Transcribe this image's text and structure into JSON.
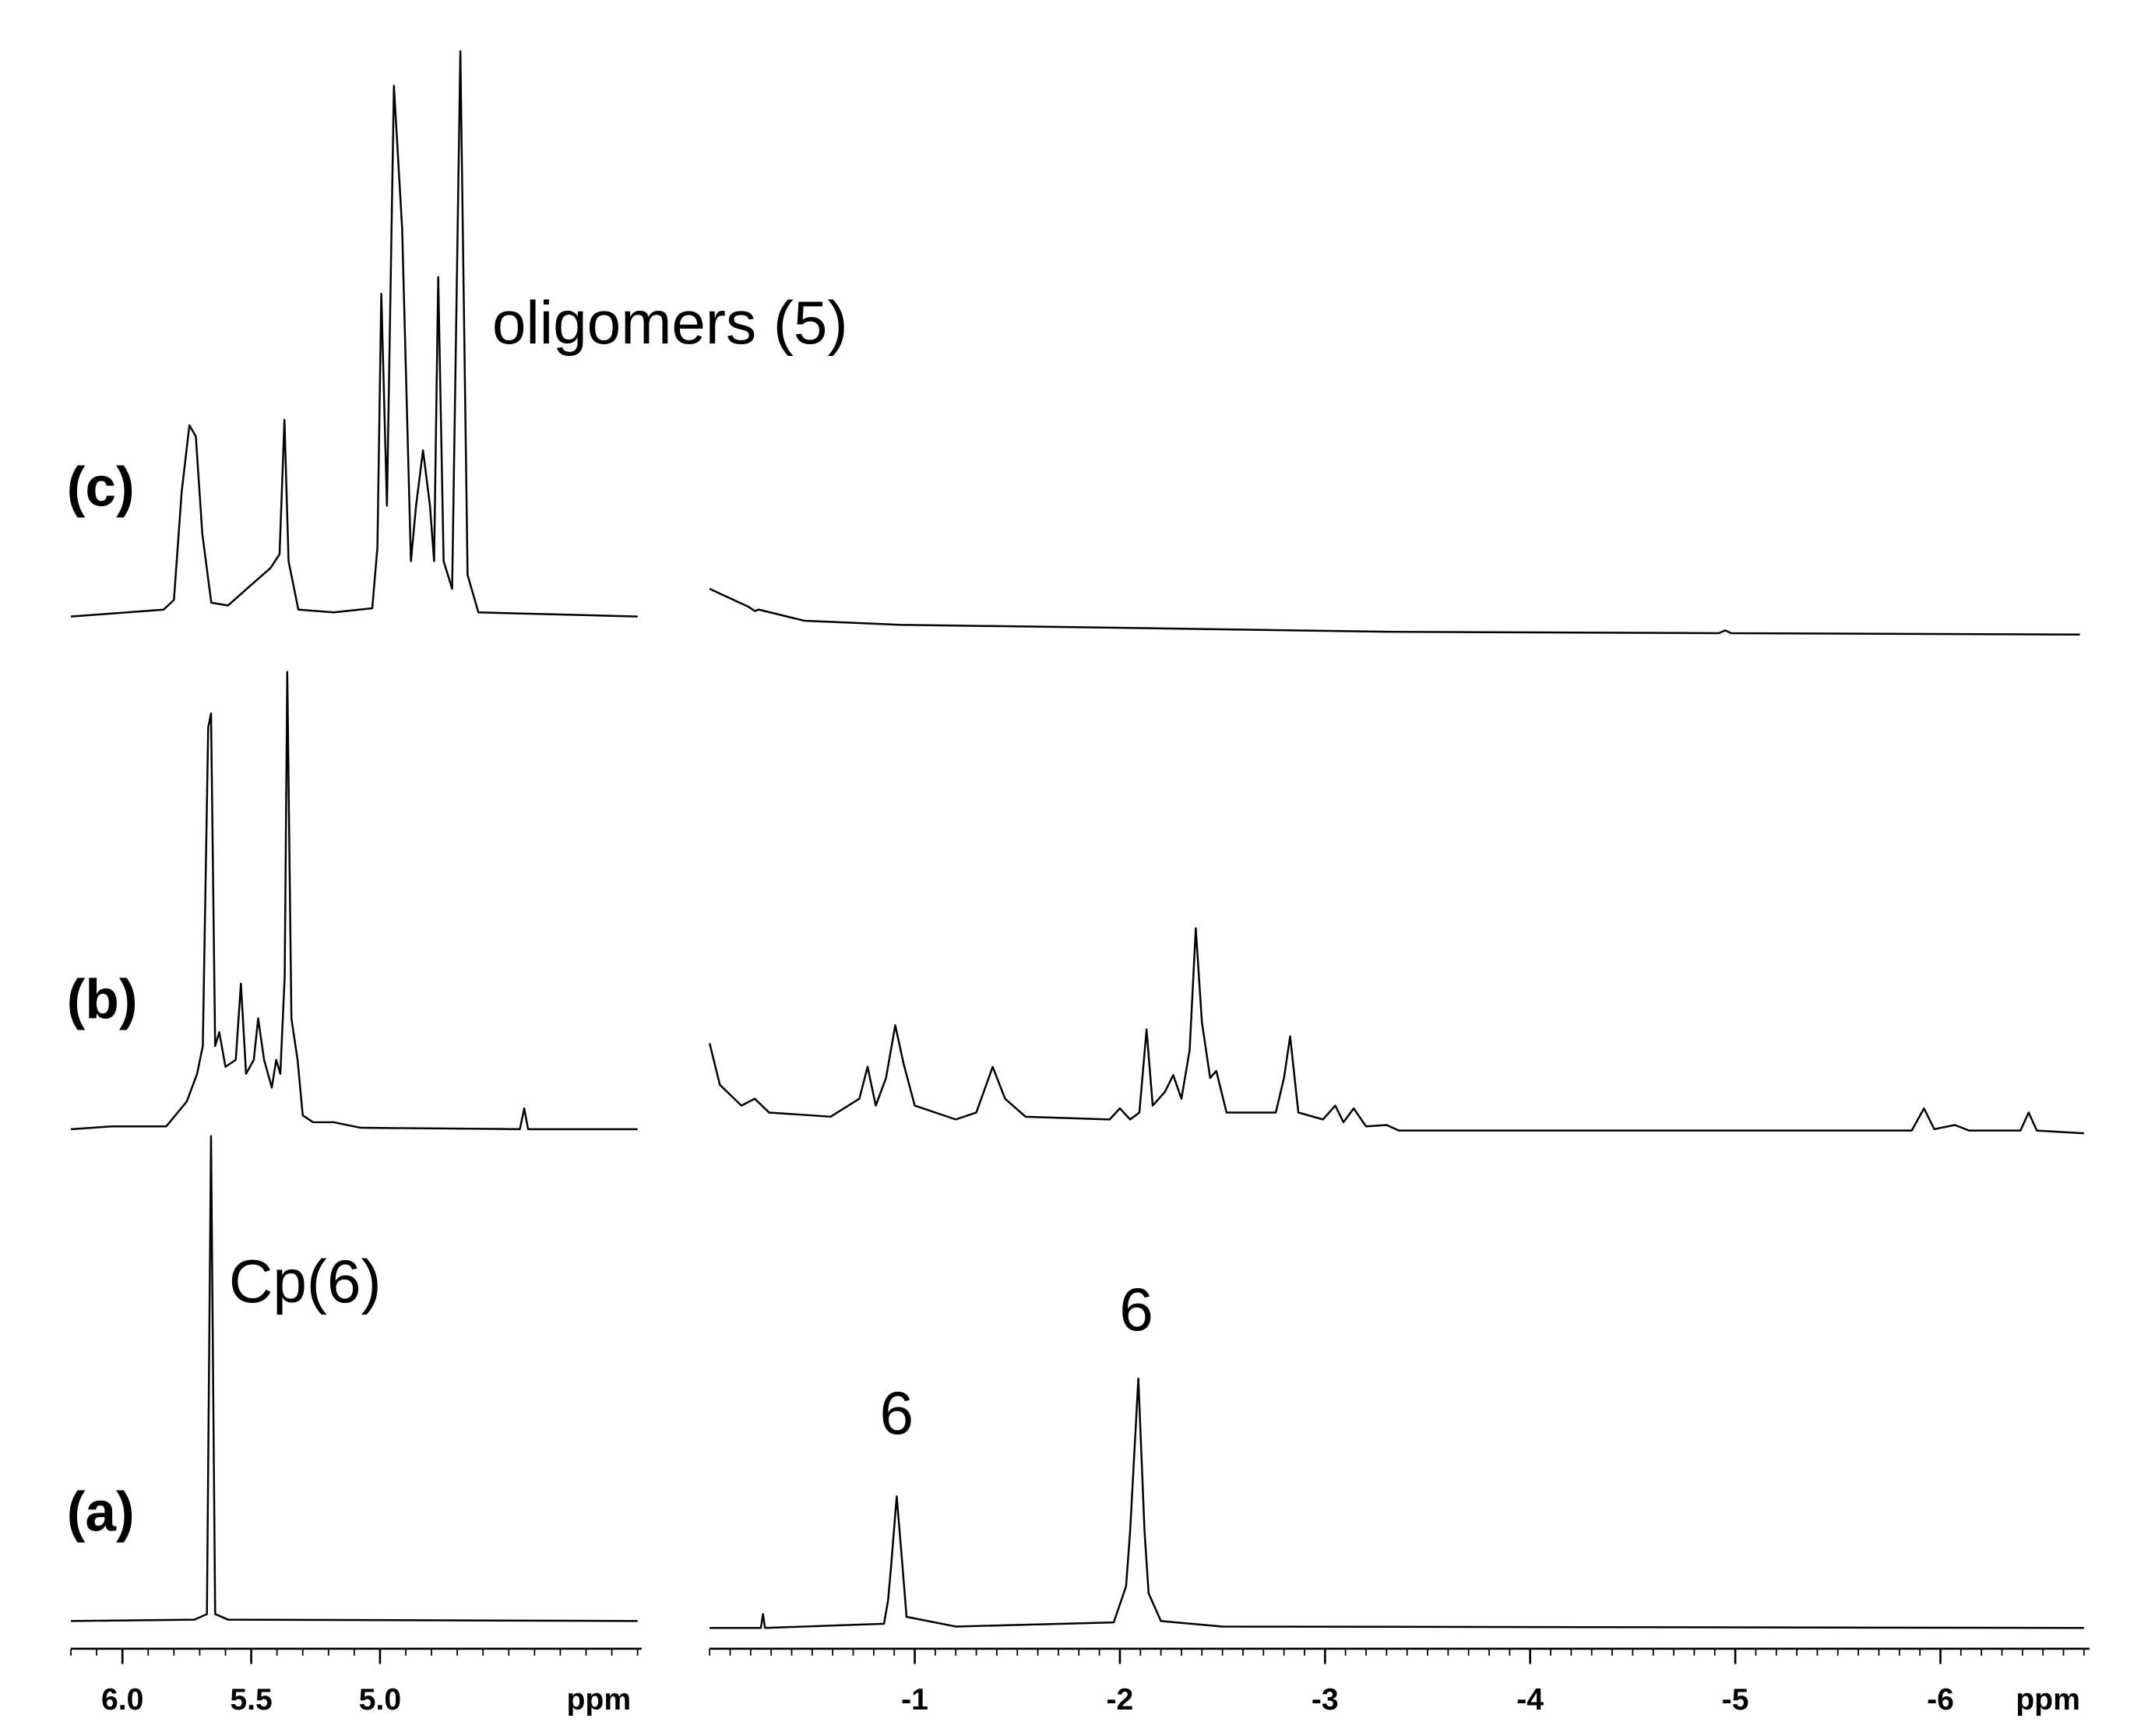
{
  "chart_data": [
    {
      "type": "line",
      "xlabel": "ppm",
      "xlim": [
        6.2,
        4.0
      ],
      "xticks": [
        {
          "value": 6,
          "label": "6.0"
        },
        5.5,
        {
          "value": 5,
          "label": "5.0"
        }
      ],
      "minor_xticks": [
        6.2,
        6.1,
        6.0,
        5.9,
        5.8,
        5.7,
        5.6,
        5.5,
        5.4,
        5.3,
        5.2,
        5.1,
        5.0,
        4.9,
        4.8,
        4.7,
        4.6,
        4.5,
        4.4,
        4.3,
        4.2,
        4.1,
        4.0
      ],
      "annotations": [
        {
          "text": "oligomers (5)"
        },
        {
          "text": "Cp(6)"
        }
      ],
      "series": [
        {
          "name": "(c)",
          "color": "#000000",
          "x": [
            6.2,
            5.84,
            5.8,
            5.77,
            5.74,
            5.715,
            5.69,
            5.655,
            5.59,
            5.505,
            5.425,
            5.39,
            5.371,
            5.355,
            5.317,
            5.18,
            5.03,
            5.01,
            4.995,
            4.973,
            4.946,
            4.914,
            4.88,
            4.86,
            4.833,
            4.806,
            4.79,
            4.774,
            4.753,
            4.72,
            4.688,
            4.66,
            4.618,
            4.0
          ],
          "values": [
            0,
            5,
            12,
            90,
            138,
            130,
            60,
            10,
            8,
            22,
            35,
            45,
            142,
            40,
            5,
            3,
            6,
            50,
            233,
            80,
            383,
            280,
            40,
            80,
            120,
            80,
            40,
            245,
            40,
            20,
            408,
            30,
            3,
            0
          ]
        },
        {
          "name": "(b)",
          "color": "#000000",
          "x": [
            6.2,
            6.04,
            5.83,
            5.75,
            5.71,
            5.688,
            5.667,
            5.656,
            5.64,
            5.624,
            5.6,
            5.56,
            5.54,
            5.52,
            5.49,
            5.473,
            5.45,
            5.42,
            5.403,
            5.387,
            5.37,
            5.36,
            5.344,
            5.32,
            5.3,
            5.26,
            5.18,
            5.075,
            4.457,
            4.44,
            4.425,
            4.0
          ],
          "values": [
            0,
            2,
            2,
            20,
            40,
            60,
            290,
            300,
            60,
            70,
            45,
            50,
            105,
            40,
            50,
            80,
            50,
            30,
            50,
            40,
            110,
            330,
            80,
            50,
            10,
            5,
            5,
            1,
            0,
            15,
            0,
            0
          ]
        },
        {
          "name": "(a)",
          "color": "#000000",
          "x": [
            6.2,
            5.72,
            5.672,
            5.656,
            5.64,
            5.59,
            4.0
          ],
          "values": [
            0,
            1,
            5,
            350,
            5,
            1,
            0
          ]
        }
      ]
    },
    {
      "type": "line",
      "xlabel": "ppm",
      "xlim": [
        0,
        -6.7
      ],
      "xticks": [
        -1,
        -2,
        -3,
        -4,
        -5,
        -6
      ],
      "minor_xticks": [
        0,
        -0.1,
        -0.2,
        -0.3,
        -0.4,
        -0.5,
        -0.6,
        -0.7,
        -0.8,
        -0.9,
        -1.0,
        -1.1,
        -1.2,
        -1.3,
        -1.4,
        -1.5,
        -1.6,
        -1.7,
        -1.8,
        -1.9,
        -2.0,
        -2.1,
        -2.2,
        -2.3,
        -2.4,
        -2.5,
        -2.6,
        -2.7,
        -2.8,
        -2.9,
        -3.0,
        -3.1,
        -3.2,
        -3.3,
        -3.4,
        -3.5,
        -3.6,
        -3.7,
        -3.8,
        -3.9,
        -4.0,
        -4.1,
        -4.2,
        -4.3,
        -4.4,
        -4.5,
        -4.6,
        -4.7,
        -4.8,
        -4.9,
        -5.0,
        -5.1,
        -5.2,
        -5.3,
        -5.4,
        -5.5,
        -5.6,
        -5.7,
        -5.8,
        -5.9,
        -6.0,
        -6.1,
        -6.2,
        -6.3,
        -6.4,
        -6.5,
        -6.6,
        -6.7
      ],
      "annotations": [
        {
          "text": "6"
        },
        {
          "text": "6"
        }
      ],
      "series": [
        {
          "color": "#000000",
          "x": [
            0,
            -0.19,
            -0.22,
            -0.24,
            -0.46,
            -0.93,
            -1.95,
            -3.3,
            -4.92,
            -4.95,
            -4.98,
            -6.68
          ],
          "values": [
            33,
            20,
            17,
            18,
            10,
            7,
            5,
            2,
            1,
            3,
            1,
            0
          ]
        },
        {
          "color": "#000000",
          "x": [
            0,
            -0.05,
            -0.155,
            -0.22,
            -0.29,
            -0.59,
            -0.73,
            -0.77,
            -0.81,
            -0.86,
            -0.905,
            -0.946,
            -1.0,
            -1.2,
            -1.3,
            -1.38,
            -1.44,
            -1.54,
            -1.95,
            -2.0,
            -2.05,
            -2.095,
            -2.13,
            -2.16,
            -2.22,
            -2.26,
            -2.3,
            -2.34,
            -2.37,
            -2.4,
            -2.44,
            -2.47,
            -2.52,
            -2.76,
            -2.8,
            -2.83,
            -2.87,
            -2.99,
            -3.05,
            -3.09,
            -3.14,
            -3.2,
            -3.3,
            -3.36,
            -5.86,
            -5.92,
            -5.97,
            -6.07,
            -6.14,
            -6.39,
            -6.43,
            -6.47,
            -6.7
          ],
          "values": [
            65,
            35,
            20,
            25,
            15,
            12,
            25,
            48,
            20,
            40,
            78,
            50,
            20,
            10,
            15,
            48,
            25,
            12,
            10,
            18,
            10,
            15,
            75,
            20,
            30,
            42,
            25,
            60,
            148,
            80,
            40,
            45,
            15,
            15,
            40,
            70,
            15,
            10,
            20,
            8,
            18,
            5,
            6,
            2,
            2,
            18,
            3,
            6,
            2,
            2,
            15,
            2,
            0
          ]
        },
        {
          "color": "#000000",
          "x": [
            0,
            -0.25,
            -0.26,
            -0.27,
            -0.85,
            -0.87,
            -0.885,
            -0.912,
            -0.94,
            -0.96,
            -1.2,
            -1.97,
            -2.03,
            -2.05,
            -2.09,
            -2.12,
            -2.14,
            -2.2,
            -2.5,
            -6.7
          ],
          "values": [
            0,
            0,
            10,
            0,
            3,
            20,
            45,
            95,
            45,
            8,
            1,
            4,
            30,
            70,
            180,
            70,
            25,
            5,
            1,
            0
          ]
        }
      ]
    }
  ]
}
